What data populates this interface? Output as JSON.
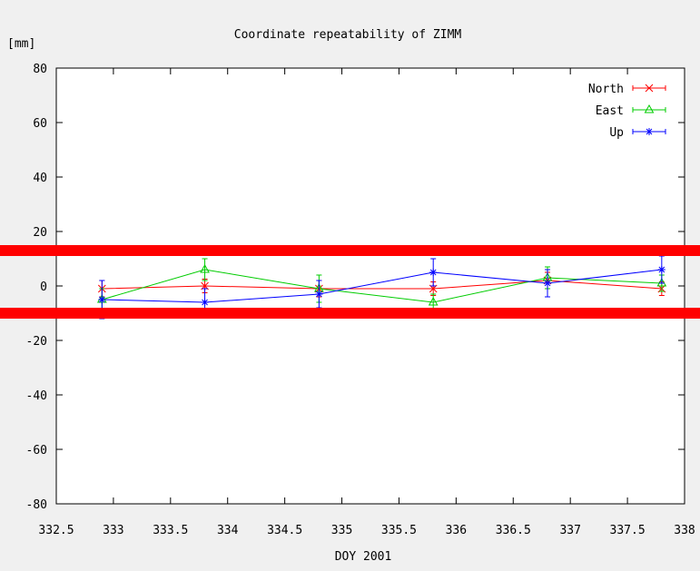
{
  "chart_data": {
    "type": "line",
    "title": "Coordinate repeatability of ZIMM",
    "xlabel": "DOY 2001",
    "ylabel": "[mm]",
    "xlim": [
      332.5,
      338
    ],
    "ylim": [
      -80,
      80
    ],
    "xticks": [
      "332.5",
      "333",
      "333.5",
      "334",
      "334.5",
      "335",
      "335.5",
      "336",
      "336.5",
      "337",
      "337.5",
      "338"
    ],
    "yticks": [
      "80",
      "60",
      "40",
      "20",
      "0",
      "-20",
      "-40",
      "-60",
      "-80"
    ],
    "legend_position": "top-right",
    "grid": false,
    "series": [
      {
        "name": "North",
        "color": "#ff0000",
        "marker": "x",
        "points": [
          {
            "x": 332.9,
            "y": -1,
            "err": 3
          },
          {
            "x": 333.8,
            "y": 0,
            "err": 2.5
          },
          {
            "x": 334.8,
            "y": -1,
            "err": 3
          },
          {
            "x": 335.8,
            "y": -1,
            "err": 2.5
          },
          {
            "x": 336.8,
            "y": 2,
            "err": 3
          },
          {
            "x": 337.8,
            "y": -1,
            "err": 2.5
          }
        ]
      },
      {
        "name": "East",
        "color": "#00cc00",
        "marker": "triangle",
        "points": [
          {
            "x": 332.9,
            "y": -5,
            "err": 4
          },
          {
            "x": 333.8,
            "y": 6,
            "err": 4
          },
          {
            "x": 334.8,
            "y": -1,
            "err": 5
          },
          {
            "x": 335.8,
            "y": -6,
            "err": 3
          },
          {
            "x": 336.8,
            "y": 3,
            "err": 4
          },
          {
            "x": 337.8,
            "y": 1,
            "err": 3
          }
        ]
      },
      {
        "name": "Up",
        "color": "#0000ff",
        "marker": "star",
        "points": [
          {
            "x": 332.9,
            "y": -5,
            "err": 7
          },
          {
            "x": 333.8,
            "y": -6,
            "err": 5
          },
          {
            "x": 334.8,
            "y": -3,
            "err": 5
          },
          {
            "x": 335.8,
            "y": 5,
            "err": 5
          },
          {
            "x": 336.8,
            "y": 1,
            "err": 5
          },
          {
            "x": 337.8,
            "y": 6,
            "err": 5
          }
        ]
      }
    ],
    "highlight_lines": {
      "color": "#ff0000",
      "y_values": [
        13,
        -10
      ]
    }
  }
}
